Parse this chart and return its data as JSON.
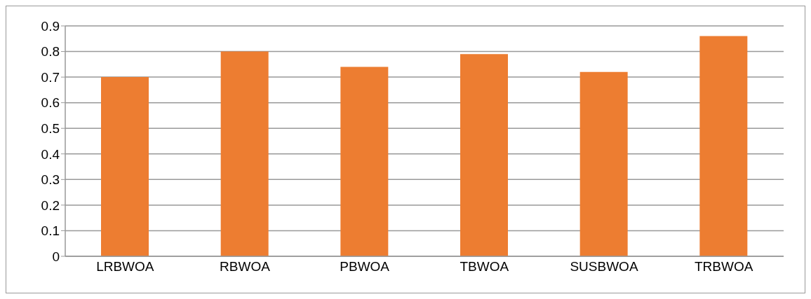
{
  "chart_data": {
    "type": "bar",
    "categories": [
      "LRBWOA",
      "RBWOA",
      "PBWOA",
      "TBWOA",
      "SUSBWOA",
      "TRBWOA"
    ],
    "values": [
      0.7,
      0.8,
      0.74,
      0.79,
      0.72,
      0.86
    ],
    "color": "#ed7d31",
    "ylim": [
      0,
      0.9
    ],
    "yticks": [
      0,
      0.1,
      0.2,
      0.3,
      0.4,
      0.5,
      0.6,
      0.7,
      0.8,
      0.9
    ],
    "grid": "y"
  }
}
